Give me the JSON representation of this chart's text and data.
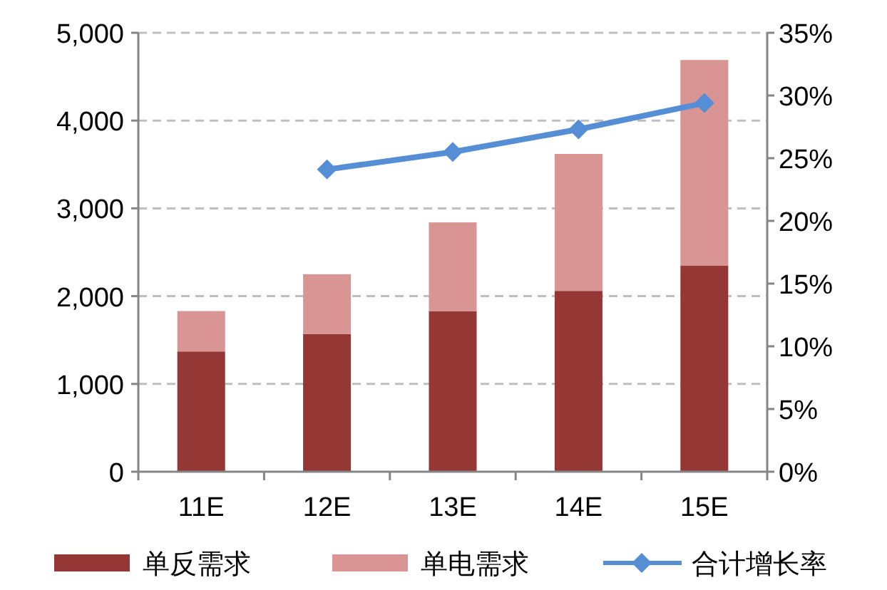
{
  "chart_data": {
    "type": "bar",
    "stacked": true,
    "categories": [
      "11E",
      "12E",
      "13E",
      "14E",
      "15E"
    ],
    "series": [
      {
        "name": "单反需求",
        "color": "#953735",
        "values": [
          1370,
          1570,
          1830,
          2060,
          2350
        ]
      },
      {
        "name": "单电需求",
        "color": "#d99594",
        "values": [
          460,
          680,
          1010,
          1560,
          2340
        ]
      },
      {
        "name": "合计增长率",
        "type": "line",
        "axis": "y2",
        "color": "#558ed5",
        "marker": "diamond",
        "values": [
          null,
          24.1,
          25.5,
          27.3,
          29.4
        ]
      }
    ],
    "ylim": [
      0,
      5000
    ],
    "yticks": [
      0,
      {
        "value": 1000,
        "label": "1,000"
      },
      {
        "value": 2000,
        "label": "2,000"
      },
      {
        "value": 3000,
        "label": "3,000"
      },
      {
        "value": 4000,
        "label": "4,000"
      },
      {
        "value": 5000,
        "label": "5,000"
      }
    ],
    "y2lim": [
      0,
      35
    ],
    "y2ticks": [
      {
        "value": 0,
        "label": "0%"
      },
      {
        "value": 5,
        "label": "5%"
      },
      {
        "value": 10,
        "label": "10%"
      },
      {
        "value": 15,
        "label": "15%"
      },
      {
        "value": 20,
        "label": "20%"
      },
      {
        "value": 25,
        "label": "25%"
      },
      {
        "value": 30,
        "label": "30%"
      },
      {
        "value": 35,
        "label": "35%"
      }
    ],
    "grid": "y",
    "legend": "bottom"
  }
}
